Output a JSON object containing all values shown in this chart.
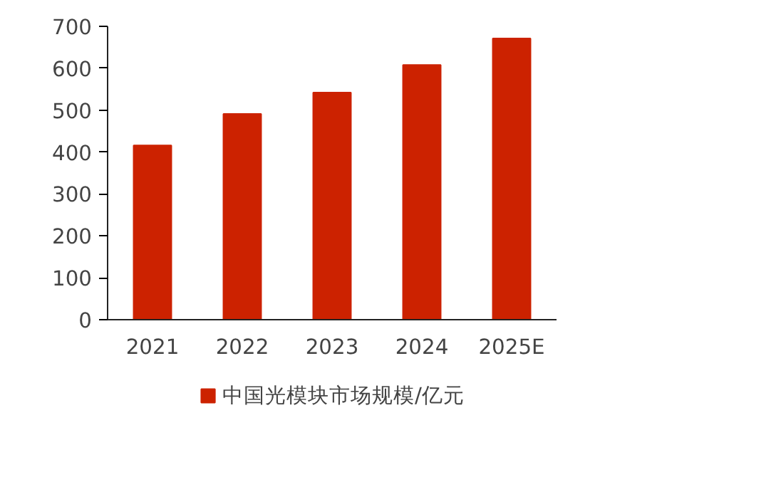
{
  "chart_data": {
    "type": "bar",
    "categories": [
      "2021",
      "2022",
      "2023",
      "2024",
      "2025E"
    ],
    "series": [
      {
        "name": "中国光模块市场规模/亿元",
        "color": "#cc2200",
        "values": [
          416,
          491,
          542,
          608,
          671
        ]
      }
    ],
    "ylim": [
      0,
      700
    ],
    "yticks": [
      0,
      100,
      200,
      300,
      400,
      500,
      600,
      700
    ],
    "grid": false,
    "legend": "bottom"
  }
}
